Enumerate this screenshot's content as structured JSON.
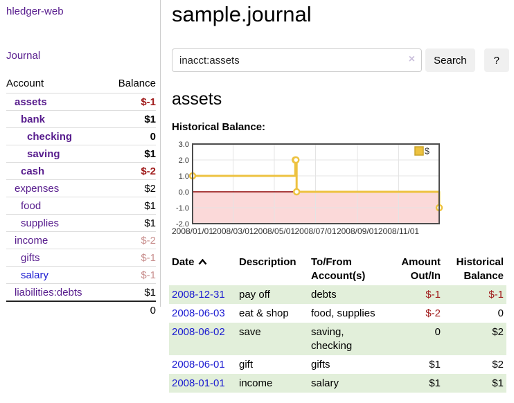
{
  "app": {
    "brand": "hledger-web"
  },
  "sidebar": {
    "journal_link": "Journal",
    "accounts": {
      "headers": {
        "account": "Account",
        "balance": "Balance"
      },
      "rows": [
        {
          "name": "assets",
          "indent": 1,
          "bold": true,
          "link": "visited",
          "balance": "$-1",
          "bclass": "neg"
        },
        {
          "name": "bank",
          "indent": 2,
          "bold": true,
          "link": "visited",
          "balance": "$1",
          "bclass": ""
        },
        {
          "name": "checking",
          "indent": 3,
          "bold": true,
          "link": "visited",
          "balance": "0",
          "bclass": ""
        },
        {
          "name": "saving",
          "indent": 3,
          "bold": true,
          "link": "visited",
          "balance": "$1",
          "bclass": ""
        },
        {
          "name": "cash",
          "indent": 2,
          "bold": true,
          "link": "visited",
          "balance": "$-2",
          "bclass": "neg"
        },
        {
          "name": "expenses",
          "indent": 1,
          "bold": false,
          "link": "visited",
          "balance": "$2",
          "bclass": ""
        },
        {
          "name": "food",
          "indent": 2,
          "bold": false,
          "link": "visited",
          "balance": "$1",
          "bclass": ""
        },
        {
          "name": "supplies",
          "indent": 2,
          "bold": false,
          "link": "visited",
          "balance": "$1",
          "bclass": ""
        },
        {
          "name": "income",
          "indent": 1,
          "bold": false,
          "link": "visited",
          "balance": "$-2",
          "bclass": "muted"
        },
        {
          "name": "gifts",
          "indent": 2,
          "bold": false,
          "link": "visited",
          "balance": "$-1",
          "bclass": "muted"
        },
        {
          "name": "salary",
          "indent": 2,
          "bold": false,
          "link": "new",
          "balance": "$-1",
          "bclass": "muted"
        },
        {
          "name": "liabilities:debts",
          "indent": 1,
          "bold": false,
          "link": "visited",
          "balance": "$1",
          "bclass": ""
        }
      ],
      "total": "0"
    }
  },
  "main": {
    "title": "sample.journal",
    "search": {
      "value": "inacct:assets",
      "clear_icon": "×",
      "search_button": "Search",
      "help_button": "?"
    },
    "account_heading": "assets",
    "chart_title": "Historical Balance:"
  },
  "chart_data": {
    "type": "line",
    "step": true,
    "title": "Historical Balance",
    "series": [
      {
        "name": "$",
        "points": [
          [
            "2008-01-01",
            1
          ],
          [
            "2008-06-01",
            2
          ],
          [
            "2008-06-02",
            2
          ],
          [
            "2008-06-03",
            0
          ],
          [
            "2008-12-31",
            -1
          ]
        ]
      }
    ],
    "x_range": [
      "2008-01-01",
      "2008-12-31"
    ],
    "ylim": [
      -2,
      3
    ],
    "yticks": [
      {
        "v": 3,
        "label": "3.0"
      },
      {
        "v": 2,
        "label": "2.0"
      },
      {
        "v": 1,
        "label": "1.0"
      },
      {
        "v": 0,
        "label": "0.0"
      },
      {
        "v": -1,
        "label": "-1.0"
      },
      {
        "v": -2,
        "label": "-2.0"
      }
    ],
    "xticks": [
      {
        "d": "2008-01-01",
        "label": "2008/01/01"
      },
      {
        "d": "2008-03-01",
        "label": "2008/03/01"
      },
      {
        "d": "2008-05-01",
        "label": "2008/05/01"
      },
      {
        "d": "2008-07-01",
        "label": "2008/07/01"
      },
      {
        "d": "2008-09-01",
        "label": "2008/09/01"
      },
      {
        "d": "2008-11-01",
        "label": "2008/11/01"
      }
    ],
    "legend": {
      "position": "top-right"
    },
    "colors": {
      "line": "#edc240",
      "marker_fill": "#ffffff",
      "negative_region": "#fbd9d9",
      "zero_line": "#8b0000",
      "grid": "#e4e4e4",
      "border": "#4d4d4d",
      "tick_text": "#333333",
      "legend_box_border": "#c9a42c"
    }
  },
  "register": {
    "headers": {
      "date": "Date",
      "description": "Description",
      "accounts": "To/From Account(s)",
      "amount": "Amount Out/In",
      "balance": "Historical Balance"
    },
    "rows": [
      {
        "date": "2008-12-31",
        "description": "pay off",
        "accounts": "debts",
        "amount": "$-1",
        "amount_neg": true,
        "balance": "$-1",
        "balance_neg": true
      },
      {
        "date": "2008-06-03",
        "description": "eat & shop",
        "accounts": "food, supplies",
        "amount": "$-2",
        "amount_neg": true,
        "balance": "0",
        "balance_neg": false
      },
      {
        "date": "2008-06-02",
        "description": "save",
        "accounts": "saving,\nchecking",
        "amount": "0",
        "amount_neg": false,
        "balance": "$2",
        "balance_neg": false
      },
      {
        "date": "2008-06-01",
        "description": "gift",
        "accounts": "gifts",
        "amount": "$1",
        "amount_neg": false,
        "balance": "$2",
        "balance_neg": false
      },
      {
        "date": "2008-01-01",
        "description": "income",
        "accounts": "salary",
        "amount": "$1",
        "amount_neg": false,
        "balance": "$1",
        "balance_neg": false
      }
    ]
  }
}
